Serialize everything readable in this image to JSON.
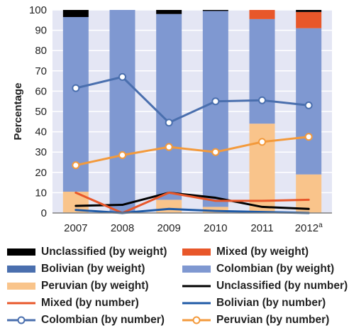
{
  "chart_data": {
    "type": "bar",
    "stacked": true,
    "ylabel": "Percentage",
    "xlabel": "",
    "ylim": [
      0,
      100
    ],
    "yticks": [
      0,
      10,
      20,
      30,
      40,
      50,
      60,
      70,
      80,
      90,
      100
    ],
    "categories": [
      "2007",
      "2008",
      "2009",
      "2010",
      "2011",
      "2012"
    ],
    "category_superscripts": [
      "",
      "",
      "",
      "",
      "",
      "a"
    ],
    "grid": true,
    "legend_position": "bottom",
    "bar_series": [
      {
        "name": "Peruvian (by weight)",
        "color": "#f9c48b",
        "values": [
          10.5,
          0,
          6.5,
          3,
          44,
          19
        ]
      },
      {
        "name": "Bolivian (by weight)",
        "color": "#4a6fae",
        "values": [
          0,
          0,
          0,
          0,
          0,
          0
        ]
      },
      {
        "name": "Colombian (by weight)",
        "color": "#7f98d1",
        "values": [
          86,
          100,
          91.5,
          96.5,
          51.5,
          72
        ]
      },
      {
        "name": "Mixed (by weight)",
        "color": "#e8572a",
        "values": [
          0,
          0,
          0,
          0,
          4.5,
          8
        ]
      },
      {
        "name": "Unclassified (by weight)",
        "color": "#000000",
        "values": [
          3.5,
          0,
          2,
          0.5,
          0,
          1
        ]
      }
    ],
    "line_series": [
      {
        "name": "Unclassified (by number)",
        "color": "#000000",
        "marker": false,
        "values": [
          3.5,
          4,
          10,
          7.5,
          3,
          2
        ]
      },
      {
        "name": "Mixed (by number)",
        "color": "#e8572a",
        "marker": false,
        "values": [
          10,
          0,
          10,
          6,
          6,
          6.5
        ]
      },
      {
        "name": "Bolivian (by number)",
        "color": "#1f5aa6",
        "marker": false,
        "values": [
          1.5,
          0,
          2,
          1,
          0.5,
          0
        ]
      },
      {
        "name": "Colombian (by number)",
        "color": "#4a6fae",
        "marker": true,
        "values": [
          61.5,
          67,
          44.5,
          55,
          55.5,
          53
        ]
      },
      {
        "name": "Peruvian (by number)",
        "color": "#f39a3c",
        "marker": true,
        "values": [
          23.5,
          28.5,
          32.5,
          30,
          35,
          37.5
        ]
      }
    ],
    "legend_order": [
      "Unclassified (by weight)",
      "Mixed (by weight)",
      "Bolivian (by weight)",
      "Colombian (by weight)",
      "Peruvian (by weight)",
      "Unclassified (by number)",
      "Mixed (by number)",
      "Bolivian (by number)",
      "Colombian (by number)",
      "Peruvian (by number)"
    ],
    "plot_background": "#e4e6f4"
  }
}
